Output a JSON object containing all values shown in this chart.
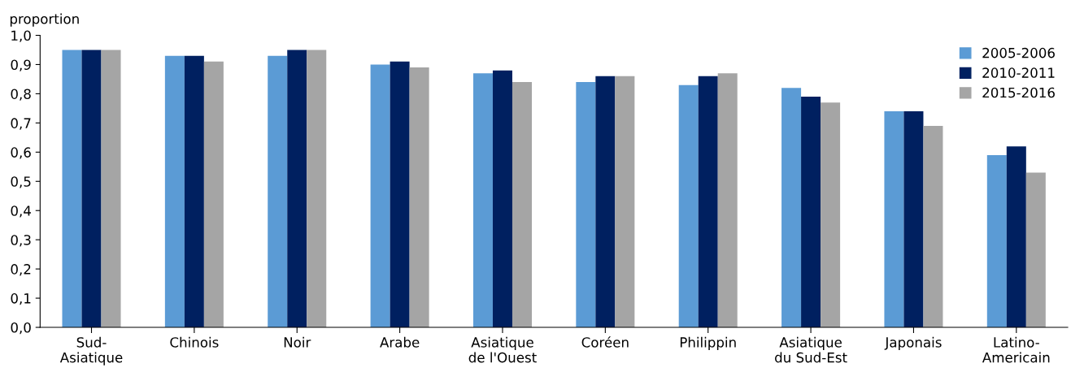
{
  "chart_data": {
    "type": "bar",
    "ylabel": "proportion",
    "categories": [
      "Sud-\nAsiatique",
      "Chinois",
      "Noir",
      "Arabe",
      "Asiatique\nde l'Ouest",
      "Coréen",
      "Philippin",
      "Asiatique\ndu Sud-Est",
      "Japonais",
      "Latino-\nAmericain"
    ],
    "series": [
      {
        "name": "2005-2006",
        "color": "#5b9bd5",
        "values": [
          0.95,
          0.93,
          0.93,
          0.9,
          0.87,
          0.84,
          0.83,
          0.82,
          0.74,
          0.59
        ]
      },
      {
        "name": "2010-2011",
        "color": "#002060",
        "values": [
          0.95,
          0.93,
          0.95,
          0.91,
          0.88,
          0.86,
          0.86,
          0.79,
          0.74,
          0.62
        ]
      },
      {
        "name": "2015-2016",
        "color": "#a5a5a5",
        "values": [
          0.95,
          0.91,
          0.95,
          0.89,
          0.84,
          0.86,
          0.87,
          0.77,
          0.69,
          0.53
        ]
      }
    ],
    "ylim": [
      0,
      1.0
    ],
    "yticks": [
      {
        "value": 0,
        "label": "0,0"
      },
      {
        "value": 0.1,
        "label": "0,1"
      },
      {
        "value": 0.2,
        "label": "0,2"
      },
      {
        "value": 0.3,
        "label": "0,3"
      },
      {
        "value": 0.4,
        "label": "0,4"
      },
      {
        "value": 0.5,
        "label": "0,5"
      },
      {
        "value": 0.6,
        "label": "0,6"
      },
      {
        "value": 0.7,
        "label": "0,7"
      },
      {
        "value": 0.8,
        "label": "0,8"
      },
      {
        "value": 0.9,
        "label": "0,9"
      },
      {
        "value": 1.0,
        "label": "1,0"
      }
    ],
    "legend": "top right",
    "grid": false
  }
}
